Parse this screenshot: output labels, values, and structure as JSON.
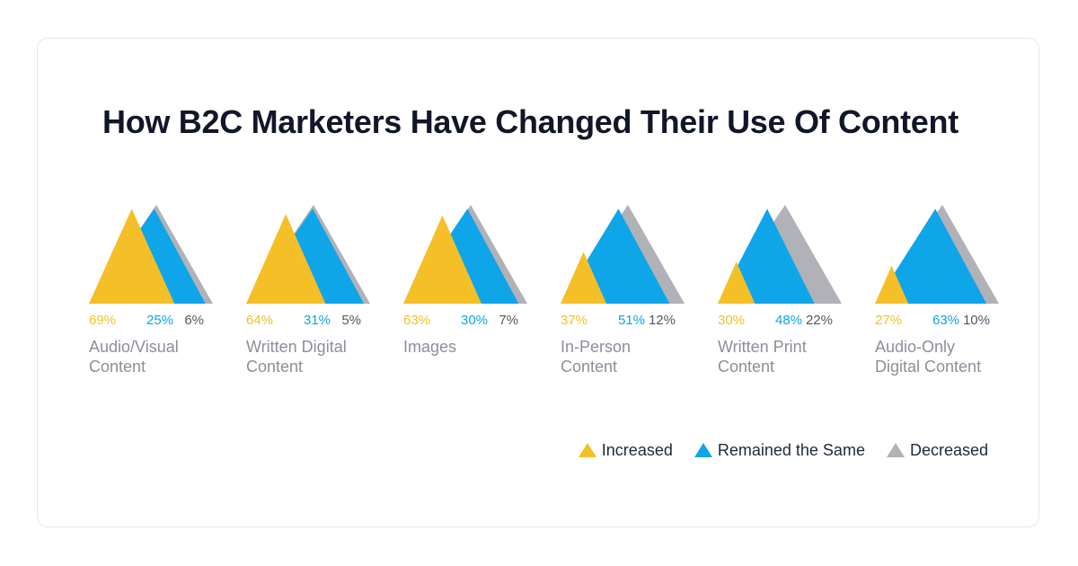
{
  "title": "How B2C Marketers Have Changed Their Use Of Content",
  "colors": {
    "increased": "#f5bf27",
    "same": "#0ea5e9",
    "decreased": "#b1b2b8"
  },
  "legend": [
    {
      "label": "Increased",
      "icon": "triangle-icon"
    },
    {
      "label": "Remained the Same",
      "icon": "triangle-icon"
    },
    {
      "label": "Decreased",
      "icon": "triangle-icon"
    }
  ],
  "chart_data": {
    "type": "bar",
    "title": "How B2C Marketers Have Changed Their Use Of Content",
    "categories": [
      "Audio/Visual Content",
      "Written Digital Content",
      "Images",
      "In-Person Content",
      "Written Print Content",
      "Audio-Only Digital Content"
    ],
    "series": [
      {
        "name": "Increased",
        "values": [
          69,
          64,
          63,
          37,
          30,
          27
        ]
      },
      {
        "name": "Remained the Same",
        "values": [
          25,
          31,
          30,
          51,
          48,
          63
        ]
      },
      {
        "name": "Decreased",
        "values": [
          6,
          5,
          7,
          12,
          22,
          10
        ]
      }
    ],
    "labels": [
      [
        "69%",
        "25%",
        "6%"
      ],
      [
        "64%",
        "31%",
        "5%"
      ],
      [
        "63%",
        "30%",
        "7%"
      ],
      [
        "37%",
        "51%",
        "12%"
      ],
      [
        "30%",
        "48%",
        "22%"
      ],
      [
        "27%",
        "63%",
        "10%"
      ]
    ],
    "category_lines": [
      [
        "Audio/Visual",
        "Content"
      ],
      [
        "Written Digital",
        "Content"
      ],
      [
        "Images"
      ],
      [
        "In-Person",
        "Content"
      ],
      [
        "Written Print",
        "Content"
      ],
      [
        "Audio-Only",
        "Digital Content"
      ]
    ],
    "legend_position": "bottom-right"
  }
}
